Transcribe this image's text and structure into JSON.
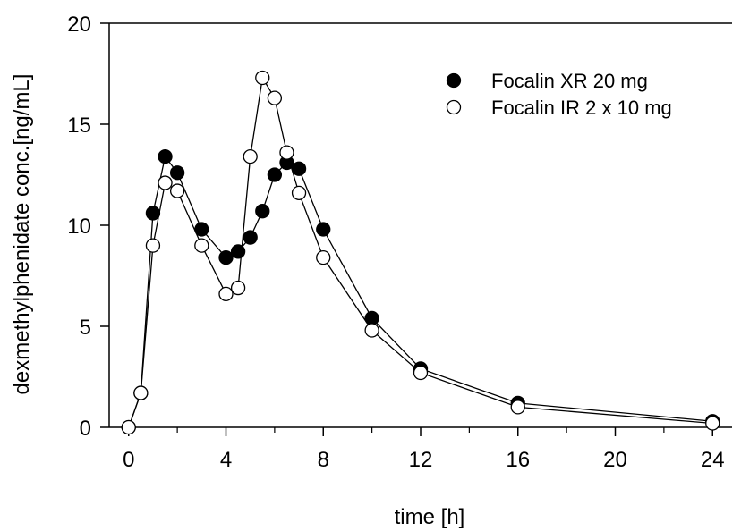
{
  "chart_data": {
    "type": "line",
    "title": "",
    "xlabel": "time [h]",
    "ylabel": "dexmethylphenidate conc.[ng/mL]",
    "xlim": [
      -0.8,
      24.8
    ],
    "ylim": [
      0,
      20
    ],
    "x_ticks": [
      0,
      4,
      8,
      12,
      16,
      20,
      24
    ],
    "x_tick_labels": [
      "0",
      "4",
      "8",
      "12",
      "16",
      "20",
      "24"
    ],
    "x_minor_ticks": [
      2,
      6,
      10,
      14,
      18,
      22
    ],
    "y_ticks": [
      0,
      5,
      10,
      15,
      20
    ],
    "y_tick_labels": [
      "0",
      "5",
      "10",
      "15",
      "20"
    ],
    "grid": false,
    "legend_position": "top-right",
    "series": [
      {
        "name": "Focalin XR 20 mg",
        "marker": "filled-circle",
        "color": "#000000",
        "x": [
          0,
          0.5,
          1,
          1.5,
          2,
          3,
          4,
          4.5,
          5,
          5.5,
          6,
          6.5,
          7,
          8,
          10,
          12,
          16,
          24
        ],
        "y": [
          0,
          1.7,
          10.6,
          13.4,
          12.6,
          9.8,
          8.4,
          8.7,
          9.4,
          10.7,
          12.5,
          13.1,
          12.8,
          9.8,
          5.4,
          2.9,
          1.2,
          0.3
        ]
      },
      {
        "name": "Focalin IR 2 x 10 mg",
        "marker": "open-circle",
        "color": "#000000",
        "x": [
          0,
          0.5,
          1,
          1.5,
          2,
          3,
          4,
          4.5,
          5,
          5.5,
          6,
          6.5,
          7,
          8,
          10,
          12,
          16,
          24
        ],
        "y": [
          0,
          1.7,
          9.0,
          12.1,
          11.7,
          9.0,
          6.6,
          6.9,
          13.4,
          17.3,
          16.3,
          13.6,
          11.6,
          8.4,
          4.8,
          2.7,
          1.0,
          0.2
        ]
      }
    ]
  }
}
